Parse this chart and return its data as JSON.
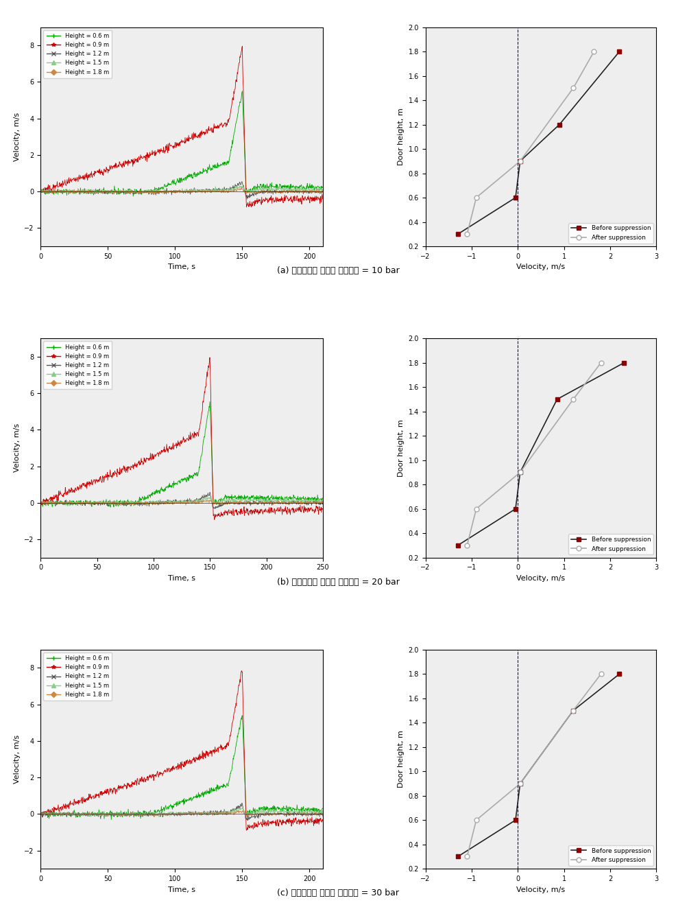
{
  "panels": [
    {
      "label": "(a) 하이브리드 헤드의 분사압력 = 10 bar",
      "time_xlim": [
        0,
        210
      ],
      "time_xticks": [
        0,
        50,
        100,
        150,
        200
      ],
      "before": {
        "velocity": [
          -1.3,
          -0.05,
          0.05,
          0.9,
          2.2
        ],
        "height": [
          0.3,
          0.6,
          0.9,
          1.2,
          1.8
        ]
      },
      "after": {
        "velocity": [
          -1.1,
          -0.9,
          0.05,
          1.2,
          1.65
        ],
        "height": [
          0.3,
          0.6,
          0.9,
          1.5,
          1.8
        ]
      }
    },
    {
      "label": "(b) 하이브리드 헤드의 분사압력 = 20 bar",
      "time_xlim": [
        0,
        250
      ],
      "time_xticks": [
        0,
        50,
        100,
        150,
        200,
        250
      ],
      "before": {
        "velocity": [
          -1.3,
          -0.05,
          0.05,
          0.85,
          2.3
        ],
        "height": [
          0.3,
          0.6,
          0.9,
          1.5,
          1.8
        ]
      },
      "after": {
        "velocity": [
          -1.1,
          -0.9,
          0.05,
          1.2,
          1.8
        ],
        "height": [
          0.3,
          0.6,
          0.9,
          1.5,
          1.8
        ]
      }
    },
    {
      "label": "(c) 하이브리드 헤드의 분사압력 = 30 bar",
      "time_xlim": [
        0,
        210
      ],
      "time_xticks": [
        0,
        50,
        100,
        150,
        200
      ],
      "before": {
        "velocity": [
          -1.3,
          -0.05,
          0.05,
          1.2,
          2.2
        ],
        "height": [
          0.3,
          0.6,
          0.9,
          1.5,
          1.8
        ]
      },
      "after": {
        "velocity": [
          -1.1,
          -0.9,
          0.05,
          1.2,
          1.8
        ],
        "height": [
          0.3,
          0.6,
          0.9,
          1.5,
          1.8
        ]
      }
    }
  ],
  "height_labels": [
    "Height = 0.6 m",
    "Height = 0.9 m",
    "Height = 1.2 m",
    "Height = 1.5 m",
    "Height = 1.8 m"
  ],
  "height_colors_left": [
    "#00aa00",
    "#cc0000",
    "#555555",
    "#88cc88",
    "#cc8844"
  ],
  "legend_markers": [
    "+",
    "*",
    "x",
    "^",
    "D"
  ],
  "velocity_ylim": [
    -3,
    9
  ],
  "velocity_yticks": [
    -2,
    0,
    2,
    4,
    6,
    8
  ],
  "door_ylim": [
    0.2,
    2.0
  ],
  "door_yticks": [
    0.2,
    0.4,
    0.6,
    0.8,
    1.0,
    1.2,
    1.4,
    1.6,
    1.8,
    2.0
  ],
  "door_xlim": [
    -2,
    3
  ],
  "door_xticks": [
    -2,
    -1,
    0,
    1,
    2,
    3
  ],
  "bg_color": "#eeeeee"
}
